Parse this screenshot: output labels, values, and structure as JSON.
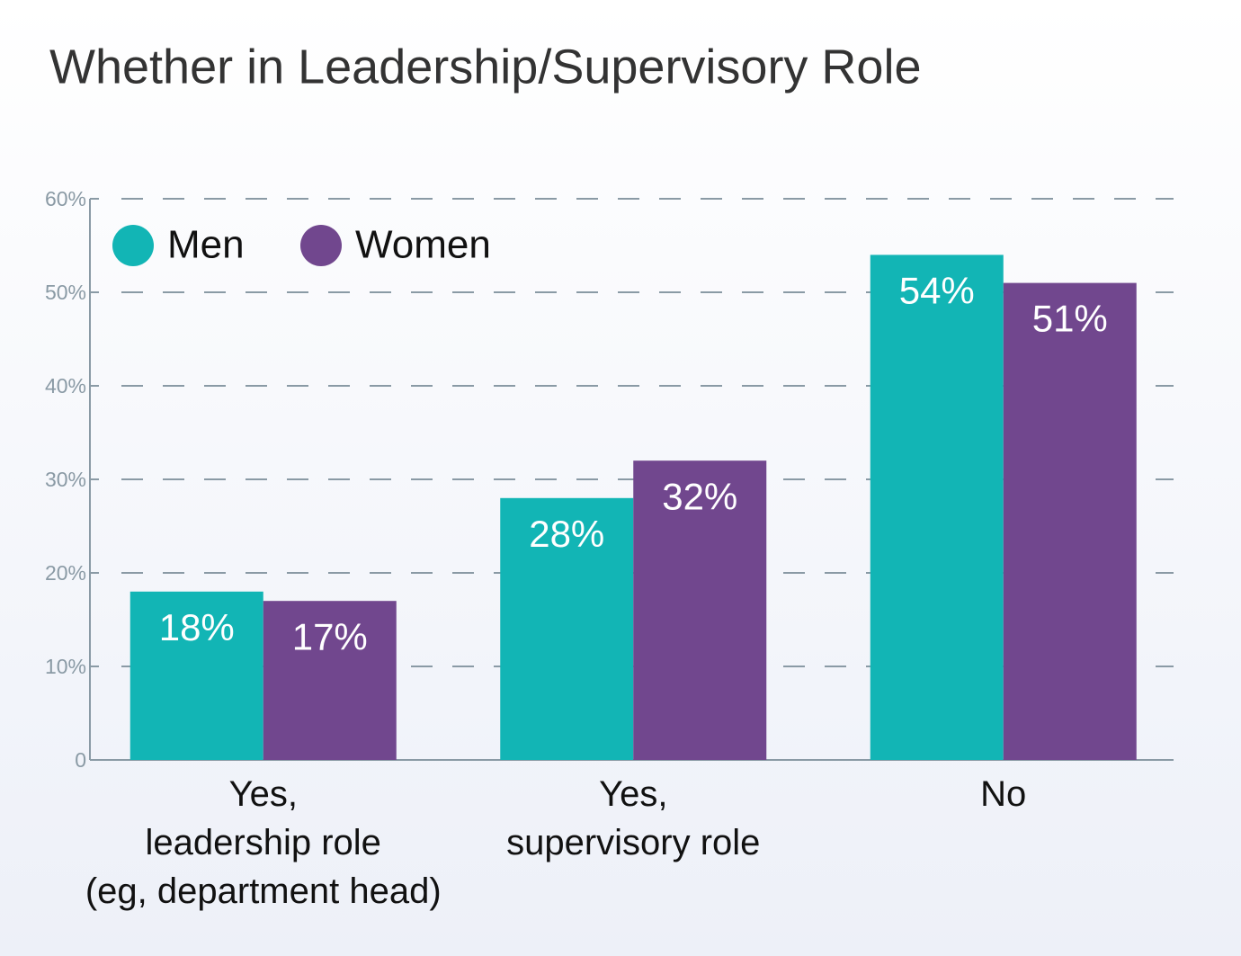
{
  "chart_data": {
    "type": "bar",
    "title": "Whether in Leadership/Supervisory Role",
    "categories": [
      "Yes,\nleadership role\n(eg, department head)",
      "Yes,\nsupervisory role",
      "No"
    ],
    "series": [
      {
        "name": "Men",
        "color": "#12b5b5",
        "values": [
          18,
          28,
          54
        ],
        "value_labels": [
          "18%",
          "28%",
          "54%"
        ]
      },
      {
        "name": "Women",
        "color": "#71478e",
        "values": [
          17,
          32,
          51
        ],
        "value_labels": [
          "17%",
          "32%",
          "51%"
        ]
      }
    ],
    "ylim": [
      0,
      60
    ],
    "yticks": [
      0,
      {
        "value": 10,
        "label": "10%"
      },
      {
        "value": 20,
        "label": "20%"
      },
      {
        "value": 30,
        "label": "30%"
      },
      {
        "value": 40,
        "label": "40%"
      },
      {
        "value": 50,
        "label": "50%"
      },
      {
        "value": 60,
        "label": "60%"
      }
    ],
    "grid": true,
    "legend": "top-left"
  }
}
